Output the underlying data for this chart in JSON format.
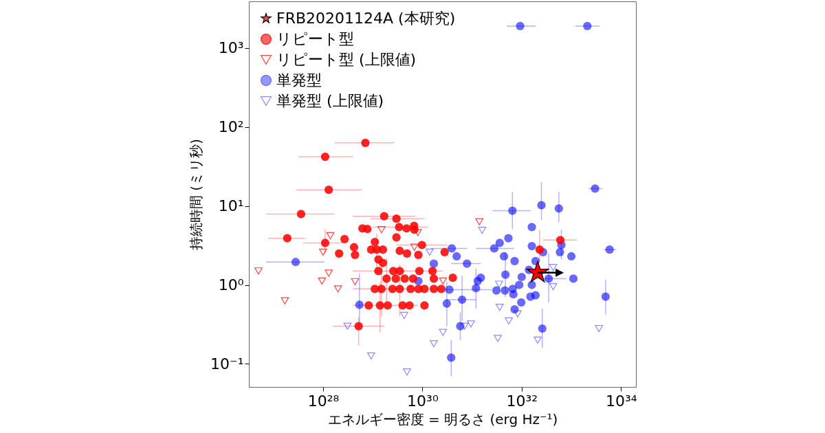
{
  "chart_data": {
    "type": "scatter",
    "xlabel": "エネルギー密度 = 明るさ (erg Hz⁻¹)",
    "ylabel": "持続時間 (ミリ秒)",
    "log": "xy",
    "legend": "top left",
    "grid": false,
    "xlim": [
      3.2e+26,
      2e+34
    ],
    "ylim": [
      0.051,
      3900
    ],
    "xticks": [
      {
        "value": 1e+28,
        "label": "10²⁸"
      },
      {
        "value": 1e+30,
        "label": "10³⁰"
      },
      {
        "value": 1e+32,
        "label": "10³²"
      },
      {
        "value": 1e+34,
        "label": "10³⁴"
      }
    ],
    "yticks": [
      {
        "value": 0.1,
        "label": "10⁻¹"
      },
      {
        "value": 1,
        "label": "10⁰"
      },
      {
        "value": 10,
        "label": "10¹"
      },
      {
        "value": 100,
        "label": "10²"
      },
      {
        "value": 1000,
        "label": "10³"
      }
    ],
    "series": [
      {
        "name": "FRB20201124A (本研究)",
        "color": "#ff0000",
        "marker": "star",
        "x": [
          2.1e+32
        ],
        "values": [
          1.43
        ]
      },
      {
        "name": "リピート型",
        "color": "#ff0000",
        "marker": "circle",
        "x": [
          7.1e+28,
          1.1e+28,
          1.3e+28,
          3.6e+27,
          1.9e+27,
          1.1e+28,
          2.7e+28,
          4.2e+28,
          2.1e+28,
          4.4e+28,
          1.7e+29,
          3e+29,
          6.2e+28,
          7.8e+28,
          3.4e+29,
          4.8e+29,
          6.8e+29,
          6.9e+29,
          3e+29,
          1.1e+29,
          9.3e+28,
          1.2e+29,
          1.6e+29,
          3.5e+29,
          9.8e+29,
          8.3e+29,
          4.9e+29,
          2.8e+30,
          1.3e+29,
          1.6e+29,
          1.3e+29,
          2.6e+29,
          3.5e+29,
          1.9e+29,
          2.9e+29,
          4.4e+29,
          8.7e+29,
          1.6e+30,
          6.5e+29,
          1.7e+30,
          1.1e+29,
          1.5e+29,
          2.5e+29,
          3.5e+29,
          5.8e+29,
          8.3e+29,
          1.1e+30,
          1.7e+30,
          2.4e+30,
          8.3e+28,
          1.4e+29,
          2e+29,
          4e+29,
          5.5e+29,
          1.1e+30,
          5.2e+28,
          4.1e+30,
          6e+32,
          2.3e+32
        ],
        "values": [
          63,
          42,
          16,
          7.9,
          3.9,
          3.4,
          3.8,
          3.0,
          2.5,
          2.4,
          7.4,
          6.9,
          5.2,
          5.1,
          5.4,
          5.2,
          5.6,
          5.0,
          4.0,
          3.5,
          2.8,
          2.8,
          2.8,
          2.7,
          3.2,
          2.4,
          2.5,
          2.6,
          2.1,
          1.9,
          1.5,
          1.5,
          1.5,
          1.2,
          1.2,
          1.2,
          1.5,
          1.5,
          1.2,
          1.2,
          0.89,
          0.89,
          0.89,
          0.89,
          0.89,
          0.89,
          0.89,
          0.89,
          0.89,
          0.55,
          0.55,
          0.55,
          0.55,
          0.55,
          0.55,
          0.3,
          1.23,
          3.7,
          2.8
        ],
        "xerrors": [
          [
            1.7e+28,
            2.7e+29
          ],
          [
            3.2e+27,
            4e+28
          ],
          [
            2.9e+27,
            6e+28
          ],
          [
            7.1e+26,
            1.7e+28
          ],
          [
            7.9e+26,
            4.4e+27
          ],
          [
            4e+27,
            2.5e+28
          ],
          null,
          null,
          null,
          null,
          [
            4e+28,
            7.1e+29
          ],
          [
            9e+28,
            1.1e+30
          ],
          null,
          null,
          [
            1e+29,
            1.3e+30
          ],
          null,
          null,
          null,
          null,
          null,
          null,
          null,
          null,
          null,
          [
            3e+29,
            3.2e+30
          ],
          null,
          null,
          null,
          null,
          null,
          [
            4e+28,
            4.5e+29
          ],
          null,
          null,
          null,
          null,
          null,
          [
            2.9e+29,
            2.6e+30
          ],
          null,
          null,
          null,
          null,
          [
            4e+28,
            5e+29
          ],
          null,
          null,
          null,
          null,
          null,
          null,
          null,
          null,
          [
            4e+28,
            8e+29
          ],
          null,
          null,
          null,
          null,
          [
            1.6e+28,
            1.7e+29
          ],
          null,
          [
            2.7e+32,
            1.3e+33
          ],
          null
        ],
        "errors": [
          null,
          null,
          null,
          null,
          null,
          [
            2.5,
            5.1
          ],
          null,
          null,
          null,
          null,
          null,
          null,
          null,
          null,
          null,
          null,
          null,
          null,
          null,
          null,
          null,
          [
            1.5,
            4.5
          ],
          null,
          null,
          null,
          null,
          null,
          null,
          null,
          null,
          null,
          null,
          null,
          [
            0.6,
            2.2
          ],
          null,
          null,
          null,
          null,
          null,
          null,
          null,
          [
            0.4,
            1.8
          ],
          null,
          [
            0.4,
            1.8
          ],
          null,
          null,
          null,
          null,
          null,
          null,
          [
            0.25,
            1.1
          ],
          null,
          null,
          null,
          null,
          [
            0.17,
            0.39
          ],
          null,
          null,
          [
            2.0,
            5.0
          ]
        ]
      },
      {
        "name": "リピート型 (上限値)",
        "color": "#ff0000",
        "marker": "triangle",
        "x": [
          5e+26,
          1.7e+27,
          9.5e+27,
          1.3e+28,
          2e+28,
          4.4e+28,
          1.4e+28,
          1e+28,
          1.5e+29,
          8.1e+29,
          6.9e+29,
          2.6e+30,
          1.4e+31
        ],
        "values": [
          1.5,
          0.63,
          1.12,
          1.41,
          0.89,
          1.1,
          4.2,
          2.6,
          5.0,
          4.6,
          3.0,
          1.12,
          6.3
        ]
      },
      {
        "name": "単発型",
        "color": "#0000ff",
        "marker": "circle",
        "x": [
          9.3e+31,
          2.1e+33,
          3e+33,
          6.5e+31,
          2.5e+32,
          5.6e+32,
          1.6e+32,
          5.4e+31,
          3.6e+31,
          2.8e+31,
          1.6e+32,
          2.7e+32,
          6.3e+32,
          5.9e+32,
          1e+33,
          5.9e+33,
          4.4e+31,
          7.2e+31,
          1.9e+32,
          3.9e+30,
          4.9e+30,
          1.7e+30,
          7.9e+30,
          4.7e+31,
          1e+32,
          1.4e+32,
          3.5e+32,
          1.1e+33,
          1.5e+31,
          1.3e+31,
          8.3e+29,
          1.2e+31,
          3.5e+30,
          3.1e+31,
          4.6e+31,
          6.6e+31,
          8.9e+31,
          1.6e+32,
          6.8e+31,
          1.5e+32,
          1.9e+32,
          9.8e+31,
          7.2e+31,
          6.3e+30,
          3.1e+30,
          4.9e+33,
          5.8e+30,
          2.6e+32,
          3.8e+30,
          2.8e+27,
          5.4e+28
        ],
        "values": [
          1900,
          1900,
          16.6,
          8.7,
          10.2,
          9.3,
          5.4,
          3.9,
          3.4,
          2.9,
          3.1,
          2.6,
          3.2,
          2.6,
          2.3,
          2.8,
          2.3,
          2.0,
          2.0,
          2.9,
          2.3,
          1.86,
          1.86,
          1.35,
          1.26,
          1.55,
          1.2,
          1.2,
          1.23,
          1.12,
          1.12,
          0.91,
          0.87,
          0.85,
          0.85,
          0.89,
          1.0,
          1.0,
          0.76,
          0.71,
          0.74,
          0.6,
          0.49,
          0.65,
          0.58,
          0.71,
          0.3,
          0.28,
          0.12,
          1.95,
          0.56
        ],
        "xerrors": [
          [
            5e+31,
            1.9e+32
          ],
          [
            1.2e+33,
            3.7e+33
          ],
          [
            2.2e+33,
            4.2e+33
          ],
          [
            2.6e+31,
            1.5e+32
          ],
          null,
          null,
          null,
          null,
          null,
          [
            1.2e+31,
            7e+31
          ],
          null,
          null,
          null,
          null,
          null,
          [
            4.5e+33,
            8e+33
          ],
          null,
          null,
          null,
          [
            1.5e+30,
            8e+30
          ],
          null,
          null,
          [
            3.8e+30,
            1.5e+31
          ],
          null,
          null,
          null,
          [
            1.6e+32,
            7.9e+32
          ],
          null,
          null,
          null,
          null,
          null,
          [
            1.5e+30,
            2.5e+31
          ],
          null,
          null,
          null,
          null,
          null,
          null,
          null,
          null,
          null,
          null,
          [
            3e+30,
            1.2e+31
          ],
          null,
          null,
          null,
          null,
          null,
          [
            7.1e+26,
            1.07e+28
          ],
          null
        ],
        "errors": [
          null,
          null,
          null,
          [
            5.1,
            15
          ],
          [
            6.6,
            20
          ],
          [
            6.2,
            15
          ],
          null,
          null,
          null,
          null,
          null,
          null,
          [
            2.1,
            5.0
          ],
          null,
          null,
          null,
          null,
          null,
          null,
          null,
          null,
          null,
          null,
          [
            0.7,
            2.6
          ],
          null,
          null,
          [
            0.6,
            2.5
          ],
          null,
          null,
          null,
          null,
          [
            0.5,
            1.6
          ],
          null,
          null,
          null,
          null,
          null,
          null,
          null,
          null,
          null,
          null,
          null,
          [
            0.35,
            1.3
          ],
          [
            0.3,
            1.1
          ],
          [
            0.42,
            1.17
          ],
          [
            0.2,
            0.45
          ],
          [
            0.16,
            0.5
          ],
          [
            0.07,
            0.2
          ],
          null,
          [
            0.3,
            1.4
          ]
        ]
      },
      {
        "name": "単発型 (上限値)",
        "color": "#0000ff",
        "marker": "triangle",
        "x": [
          3.1e+28,
          9.3e+28,
          4.9e+29,
          4.3e+29,
          1.7e+30,
          2.6e+30,
          1.6e+31,
          4.3e+32,
          4.3e+32,
          3.5e+31,
          3.6e+31,
          5.5e+31,
          8.3e+31,
          9.5e+30,
          7.1e+30,
          3.3e+31,
          2.1e+32,
          3.6e+33,
          1.4e+30
        ],
        "values": [
          0.3,
          0.126,
          0.079,
          0.41,
          0.18,
          0.25,
          4.9,
          1.66,
          0.95,
          1.02,
          0.52,
          0.35,
          0.43,
          0.32,
          0.3,
          0.21,
          0.2,
          0.28,
          2.6
        ]
      }
    ]
  }
}
